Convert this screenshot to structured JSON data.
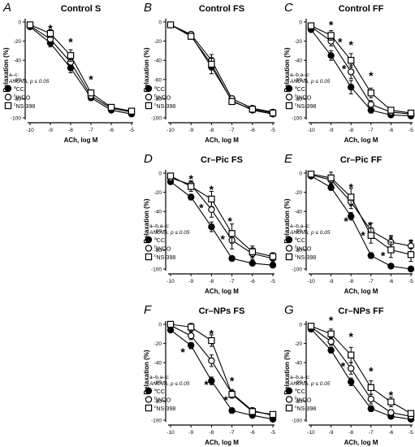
{
  "figure": {
    "shared": {
      "xlabel": "ACh, log M",
      "ylabel": "Relaxation (%)",
      "x_ticks": [
        -10,
        -9,
        -8,
        -7,
        -6,
        -5
      ],
      "y_ticks": [
        0,
        -20,
        -40,
        -60,
        -80,
        -100
      ],
      "legend": [
        {
          "superscript": "a",
          "name": "CC",
          "marker": "filled-circle"
        },
        {
          "superscript": "b",
          "name": "INDO",
          "marker": "open-circle"
        },
        {
          "superscript": "c",
          "name": "NS-398",
          "marker": "open-square"
        }
      ]
    }
  },
  "chart_data": [
    {
      "type": "line",
      "panel_letter": "A",
      "title": "Control S",
      "xlabel": "ACh, log M",
      "ylabel": "Relaxation (%)",
      "xlim": [
        -10,
        -5
      ],
      "ylim": [
        -100,
        0
      ],
      "x": [
        -10,
        -9,
        -8,
        -7,
        -6,
        -5
      ],
      "series": [
        {
          "name": "CC",
          "label_prefix": "a",
          "marker": "filled-circle",
          "values": [
            -5,
            -22,
            -48,
            -79,
            -92,
            -96
          ],
          "err": [
            2,
            4,
            5,
            3,
            2,
            2
          ]
        },
        {
          "name": "INDO",
          "label_prefix": "b",
          "marker": "open-circle",
          "values": [
            -4,
            -18,
            -42,
            -77,
            -90,
            -94
          ],
          "err": [
            2,
            4,
            5,
            3,
            2,
            2
          ]
        },
        {
          "name": "NS-398",
          "label_prefix": "c",
          "marker": "open-square",
          "values": [
            -3,
            -12,
            -35,
            -74,
            -89,
            -93
          ],
          "err": [
            2,
            4,
            6,
            3,
            2,
            2
          ]
        }
      ],
      "stars": [
        [
          -9,
          -6
        ],
        [
          -8,
          -20
        ],
        [
          -7,
          -59
        ]
      ],
      "stat_note": [
        "a–c:",
        "ANOVA, p ≤ 0.05"
      ],
      "legend_position": "bottom-left"
    },
    {
      "type": "line",
      "panel_letter": "B",
      "title": "Control FS",
      "xlabel": "ACh, log M",
      "ylabel": "Relaxation (%)",
      "xlim": [
        -10,
        -5
      ],
      "ylim": [
        -100,
        0
      ],
      "x": [
        -10,
        -9,
        -8,
        -7,
        -6,
        -5
      ],
      "series": [
        {
          "name": "CC",
          "label_prefix": "a",
          "marker": "filled-circle",
          "values": [
            -3,
            -14,
            -47,
            -82,
            -92,
            -96
          ],
          "err": [
            1,
            3,
            7,
            3,
            2,
            2
          ]
        },
        {
          "name": "INDO",
          "label_prefix": "b",
          "marker": "open-circle",
          "values": [
            -3,
            -13,
            -40,
            -80,
            -90,
            -94
          ],
          "err": [
            1,
            3,
            6,
            3,
            2,
            2
          ]
        },
        {
          "name": "NS-398",
          "label_prefix": "c",
          "marker": "open-square",
          "values": [
            -3,
            -15,
            -44,
            -83,
            -91,
            -95
          ],
          "err": [
            1,
            3,
            6,
            3,
            2,
            2
          ]
        }
      ],
      "stars": [],
      "stat_note": [],
      "legend_position": "bottom-left"
    },
    {
      "type": "line",
      "panel_letter": "C",
      "title": "Control FF",
      "xlabel": "ACh, log M",
      "ylabel": "Relaxation (%)",
      "xlim": [
        -10,
        -5
      ],
      "ylim": [
        -100,
        0
      ],
      "x": [
        -10,
        -9,
        -8,
        -7,
        -6,
        -5
      ],
      "series": [
        {
          "name": "CC",
          "label_prefix": "a",
          "marker": "filled-circle",
          "values": [
            -8,
            -35,
            -68,
            -92,
            -97,
            -98
          ],
          "err": [
            2,
            5,
            7,
            3,
            2,
            2
          ]
        },
        {
          "name": "INDO",
          "label_prefix": "b",
          "marker": "open-circle",
          "values": [
            -5,
            -20,
            -52,
            -86,
            -94,
            -96
          ],
          "err": [
            2,
            5,
            7,
            4,
            2,
            2
          ]
        },
        {
          "name": "NS-398",
          "label_prefix": "c",
          "marker": "open-square",
          "values": [
            -4,
            -14,
            -40,
            -74,
            -92,
            -95
          ],
          "err": [
            2,
            5,
            7,
            5,
            3,
            2
          ]
        }
      ],
      "stars": [
        [
          -9,
          -2
        ],
        [
          -8,
          -23
        ],
        [
          -8.55,
          -20
        ],
        [
          -8.35,
          -48
        ],
        [
          -7,
          -55
        ]
      ],
      "stat_note": [
        "a–b,a–c:",
        "ANOVA, p ≤ 0.05"
      ],
      "legend_position": "bottom-left"
    },
    {
      "type": "line",
      "panel_letter": "D",
      "title": "Cr–Pic FS",
      "xlabel": "ACh, log M",
      "ylabel": "Relaxation (%)",
      "xlim": [
        -10,
        -5
      ],
      "ylim": [
        -100,
        0
      ],
      "x": [
        -10,
        -9,
        -8,
        -7,
        -6,
        -5
      ],
      "series": [
        {
          "name": "CC",
          "label_prefix": "a",
          "marker": "filled-circle",
          "values": [
            -9,
            -25,
            -56,
            -89,
            -94,
            -96
          ],
          "err": [
            2,
            3,
            5,
            2,
            2,
            2
          ]
        },
        {
          "name": "INDO",
          "label_prefix": "b",
          "marker": "open-circle",
          "values": [
            -5,
            -12,
            -38,
            -70,
            -84,
            -89
          ],
          "err": [
            2,
            4,
            8,
            9,
            6,
            4
          ]
        },
        {
          "name": "NS-398",
          "label_prefix": "c",
          "marker": "open-square",
          "values": [
            -3,
            -14,
            -27,
            -63,
            -82,
            -87
          ],
          "err": [
            2,
            5,
            8,
            10,
            6,
            4
          ]
        }
      ],
      "stars": [
        [
          -9,
          -5
        ],
        [
          -8,
          -16
        ],
        [
          -7.1,
          -49
        ],
        [
          -8.5,
          -35
        ],
        [
          -7.45,
          -68
        ]
      ],
      "stat_note": [
        "a–b,a–c:",
        "ANOVA, p ≤ 0.05"
      ],
      "legend_position": "bottom-left"
    },
    {
      "type": "line",
      "panel_letter": "E",
      "title": "Cr–Pic FF",
      "xlabel": "ACh, log M",
      "ylabel": "Relaxation (%)",
      "xlim": [
        -10,
        -5
      ],
      "ylim": [
        -100,
        0
      ],
      "x": [
        -10,
        -9,
        -8,
        -7,
        -6,
        -5
      ],
      "series": [
        {
          "name": "CC",
          "label_prefix": "a",
          "marker": "filled-circle",
          "values": [
            -3,
            -15,
            -45,
            -86,
            -97,
            -100
          ],
          "err": [
            1,
            3,
            4,
            3,
            2,
            1
          ]
        },
        {
          "name": "INDO",
          "label_prefix": "b",
          "marker": "open-circle",
          "values": [
            -2,
            -7,
            -30,
            -60,
            -72,
            -76
          ],
          "err": [
            1,
            5,
            7,
            8,
            7,
            6
          ]
        },
        {
          "name": "NS-398",
          "label_prefix": "c",
          "marker": "open-square",
          "values": [
            -1,
            -5,
            -25,
            -65,
            -80,
            -85
          ],
          "err": [
            1,
            6,
            9,
            8,
            8,
            7
          ]
        }
      ],
      "stars": [
        [
          -8,
          -14
        ],
        [
          -8.25,
          -49
        ],
        [
          -7.05,
          -54
        ],
        [
          -6,
          -68
        ],
        [
          -5,
          -72
        ],
        [
          -7.4,
          -64
        ],
        [
          -6.4,
          -85
        ]
      ],
      "stat_note": [
        "a–b,a–c:",
        "ANOVA, p ≤ 0.05"
      ],
      "legend_position": "bottom-left"
    },
    {
      "type": "line",
      "panel_letter": "F",
      "title": "Cr–NPs FS",
      "xlabel": "ACh, log M",
      "ylabel": "Relaxation (%)",
      "xlim": [
        -10,
        -5
      ],
      "ylim": [
        -100,
        0
      ],
      "x": [
        -10,
        -9,
        -8,
        -7,
        -6,
        -5
      ],
      "series": [
        {
          "name": "CC",
          "label_prefix": "a",
          "marker": "filled-circle",
          "values": [
            -6,
            -22,
            -59,
            -90,
            -95,
            -99
          ],
          "err": [
            1,
            3,
            4,
            2,
            2,
            1
          ]
        },
        {
          "name": "INDO",
          "label_prefix": "b",
          "marker": "open-circle",
          "values": [
            -1,
            -12,
            -38,
            -72,
            -90,
            -95
          ],
          "err": [
            2,
            4,
            6,
            4,
            3,
            2
          ]
        },
        {
          "name": "NS-398",
          "label_prefix": "c",
          "marker": "open-square",
          "values": [
            0,
            -3,
            -17,
            -73,
            -91,
            -94
          ],
          "err": [
            2,
            4,
            6,
            4,
            2,
            2
          ]
        }
      ],
      "stars": [
        [
          -9,
          -25
        ],
        [
          -8,
          -9
        ],
        [
          -9.4,
          -28
        ],
        [
          -8.25,
          -62
        ],
        [
          -7,
          -58
        ],
        [
          -7.3,
          -78
        ]
      ],
      "stat_note": [
        "a–b,a–c:",
        "ANOVA, p ≤ 0.05"
      ],
      "legend_position": "bottom-left"
    },
    {
      "type": "line",
      "panel_letter": "G",
      "title": "Cr–NPs FF",
      "xlabel": "ACh, log M",
      "ylabel": "Relaxation (%)",
      "xlim": [
        -10,
        -5
      ],
      "ylim": [
        -100,
        0
      ],
      "x": [
        -10,
        -9,
        -8,
        -7,
        -6,
        -5
      ],
      "series": [
        {
          "name": "CC",
          "label_prefix": "a",
          "marker": "filled-circle",
          "values": [
            -5,
            -27,
            -60,
            -88,
            -96,
            -99
          ],
          "err": [
            1,
            3,
            4,
            3,
            2,
            1
          ]
        },
        {
          "name": "INDO",
          "label_prefix": "b",
          "marker": "open-circle",
          "values": [
            -3,
            -18,
            -46,
            -78,
            -92,
            -96
          ],
          "err": [
            2,
            4,
            6,
            5,
            3,
            2
          ]
        },
        {
          "name": "NS-398",
          "label_prefix": "c",
          "marker": "open-square",
          "values": [
            -2,
            -10,
            -32,
            -66,
            -81,
            -93
          ],
          "err": [
            2,
            5,
            8,
            7,
            5,
            2
          ]
        }
      ],
      "stars": [
        [
          -9,
          5
        ],
        [
          -8,
          -12
        ],
        [
          -7,
          -48
        ],
        [
          -6,
          -73
        ],
        [
          -8.4,
          -43
        ]
      ],
      "stat_note": [
        "a–b,a–c:",
        "ANOVA, p ≤ 0.05"
      ],
      "legend_position": "bottom-left"
    }
  ]
}
